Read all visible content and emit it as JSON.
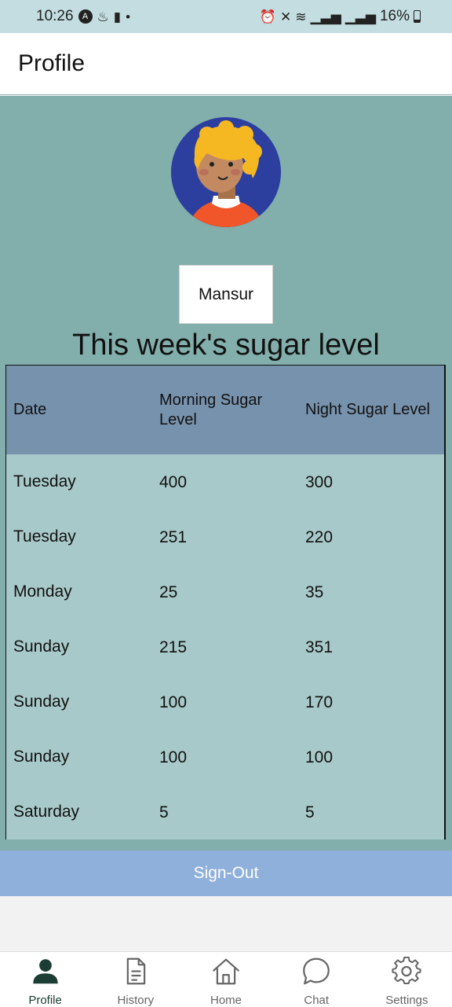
{
  "status_bar": {
    "time": "10:26",
    "battery": "16%"
  },
  "header": {
    "title": "Profile"
  },
  "profile": {
    "name": "Mansur"
  },
  "sugar": {
    "title": "This week's sugar level",
    "columns": [
      "Date",
      "Morning Sugar Level",
      "Night Sugar Level"
    ],
    "rows": [
      [
        "Tuesday",
        "400",
        "300"
      ],
      [
        "Tuesday",
        "251",
        "220"
      ],
      [
        "Monday",
        "25",
        "35"
      ],
      [
        "Sunday",
        "215",
        "351"
      ],
      [
        "Sunday",
        "100",
        "170"
      ],
      [
        "Sunday",
        "100",
        "100"
      ],
      [
        "Saturday",
        "5",
        "5"
      ]
    ]
  },
  "signout_label": "Sign-Out",
  "nav": {
    "items": [
      {
        "label": "Profile",
        "icon": "person-icon",
        "active": true
      },
      {
        "label": "History",
        "icon": "document-icon",
        "active": false
      },
      {
        "label": "Home",
        "icon": "home-icon",
        "active": false
      },
      {
        "label": "Chat",
        "icon": "chat-bubble-icon",
        "active": false
      },
      {
        "label": "Settings",
        "icon": "gear-icon",
        "active": false
      }
    ]
  },
  "colors": {
    "status_bar": "#c3dde0",
    "content_bg": "#82aeab",
    "table_header": "#7792ad",
    "table_body": "#a8c9c9",
    "signout_bg": "#8eb0db",
    "nav_active": "#1b3d33"
  }
}
